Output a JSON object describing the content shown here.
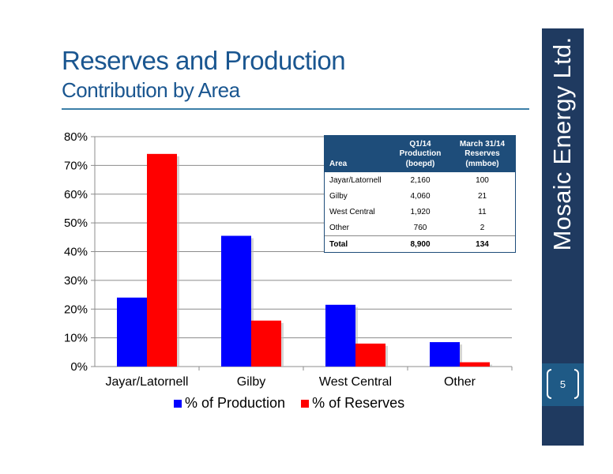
{
  "slide": {
    "title": "Reserves and Production",
    "subtitle": "Contribution by Area",
    "brand": "Mosaic Energy Ltd.",
    "page_number": "5"
  },
  "colors": {
    "title": "#1a5690",
    "sidebar": "#1f3a60",
    "production": "#0000ff",
    "reserves": "#ff0000"
  },
  "chart_data": {
    "type": "bar",
    "categories": [
      "Jayar/Latornell",
      "Gilby",
      "West Central",
      "Other"
    ],
    "series": [
      {
        "name": "% of Production",
        "values": [
          24,
          45.5,
          21.5,
          8.5
        ],
        "color": "#0000ff"
      },
      {
        "name": "% of Reserves",
        "values": [
          74,
          16,
          8,
          1.5
        ],
        "color": "#ff0000"
      }
    ],
    "yticks": [
      "0%",
      "10%",
      "20%",
      "30%",
      "40%",
      "50%",
      "60%",
      "70%",
      "80%"
    ],
    "ylim": [
      0,
      80
    ],
    "grid": true,
    "legend": "bottom"
  },
  "table": {
    "headers": [
      "Area",
      "Q1/14\nProduction\n(boepd)",
      "March 31/14\nReserves\n(mmboe)"
    ],
    "rows": [
      [
        "Jayar/Latornell",
        "2,160",
        "100"
      ],
      [
        "Gilby",
        "4,060",
        "21"
      ],
      [
        "West Central",
        "1,920",
        "11"
      ],
      [
        "Other",
        "760",
        "2"
      ]
    ],
    "total": [
      "Total",
      "8,900",
      "134"
    ]
  }
}
